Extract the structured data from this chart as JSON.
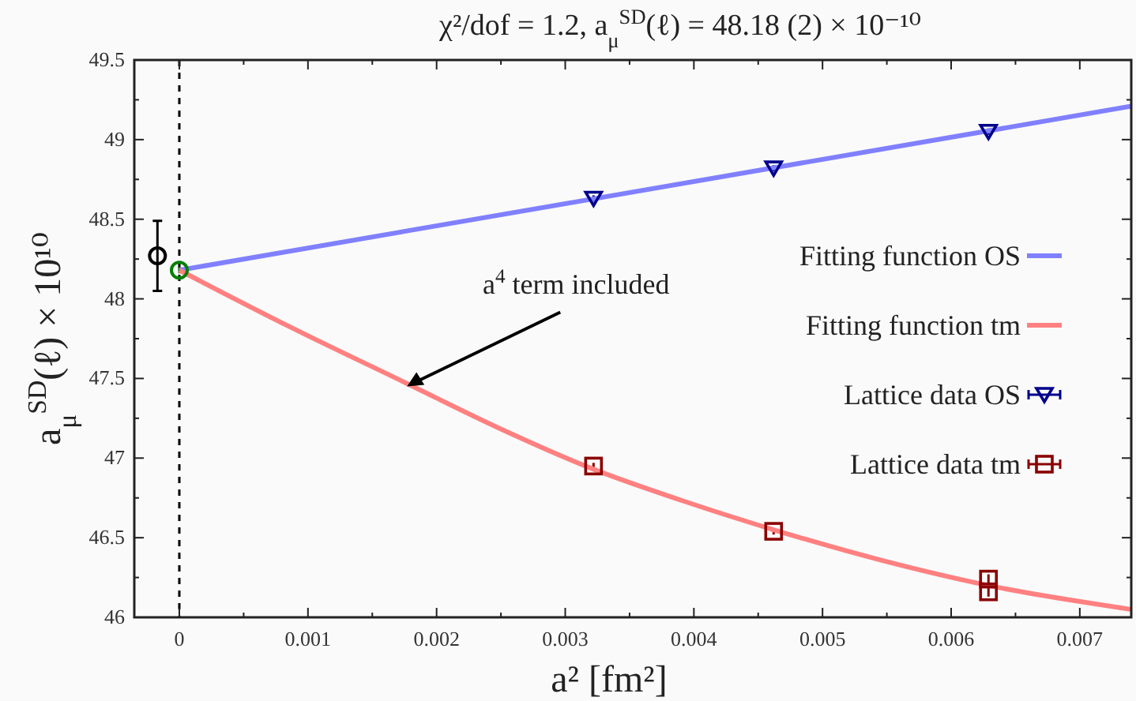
{
  "chart_data": {
    "type": "line",
    "title": "χ²/dof = 1.2,    a$_{μ}$$^{SD}$(ℓ) = 48.18 (2) × 10⁻¹⁰",
    "xlabel": "a² [fm²]",
    "ylabel": "a$_{μ}$$^{SD}$(ℓ) × 10¹⁰",
    "xlim": [
      -0.00035,
      0.0074
    ],
    "ylim": [
      46,
      49.5
    ],
    "xticks": [
      0,
      {
        "value": 0.0005,
        "label": null
      },
      0.001,
      {
        "value": 0.0015,
        "label": null
      },
      0.002,
      {
        "value": 0.0025,
        "label": null
      },
      0.003,
      {
        "value": 0.0035,
        "label": null
      },
      0.004,
      {
        "value": 0.0045,
        "label": null
      },
      0.005,
      {
        "value": 0.0055,
        "label": null
      },
      0.006,
      {
        "value": 0.0065,
        "label": null
      },
      0.007
    ],
    "yticks": [
      46,
      {
        "value": 46.25,
        "label": null
      },
      46.5,
      {
        "value": 46.75,
        "label": null
      },
      47,
      {
        "value": 47.25,
        "label": null
      },
      47.5,
      {
        "value": 47.75,
        "label": null
      },
      48,
      {
        "value": 48.25,
        "label": null
      },
      48.5,
      {
        "value": 48.75,
        "label": null
      },
      49,
      {
        "value": 49.25,
        "label": null
      },
      49.5
    ],
    "grid": false,
    "legend": "right",
    "ref_lines": [
      {
        "axis": "x",
        "value": 0,
        "color": "#000000",
        "line_style": "dashed"
      }
    ],
    "annotations": [
      {
        "text": "a$^{4}$ term included",
        "x": 0.00177,
        "y": 47.45
      }
    ],
    "series": [
      {
        "name": "Fitting function OS",
        "color": "#8080ff",
        "x": [
          0,
          0.0074
        ],
        "values": [
          48.18,
          49.21
        ]
      },
      {
        "name": "Fitting function tm",
        "color": "#ff8080",
        "x": [
          0,
          0.00087,
          0.00174,
          0.00248,
          0.00322,
          0.00392,
          0.00462,
          0.00545,
          0.00629,
          0.0074
        ],
        "values": [
          48.18,
          47.82,
          47.48,
          47.19,
          46.93,
          46.73,
          46.55,
          46.36,
          46.2,
          46.05
        ]
      },
      {
        "name": "Lattice data OS",
        "type": "scatter",
        "marker": "triangle",
        "color": "#00008b",
        "x": [
          0.00322,
          0.00462,
          0.00629
        ],
        "values": [
          48.63,
          48.82,
          49.05
        ],
        "errors": [
          0.02,
          0.02,
          0.02
        ],
        "xerrors": [
          null,
          null,
          null
        ]
      },
      {
        "name": "Lattice data tm",
        "type": "scatter",
        "marker": "square",
        "color": "#8b0000",
        "x": [
          0.00322,
          0.00462,
          0.00629,
          0.00629
        ],
        "values": [
          46.95,
          46.54,
          46.24,
          46.16
        ],
        "errors": [
          0.02,
          0.02,
          0.03,
          0.03
        ]
      },
      {
        "type": "scatter",
        "marker": "circle",
        "color": "#008000",
        "x": [
          0
        ],
        "values": [
          48.18
        ],
        "errors": [
          0.02
        ]
      },
      {
        "type": "scatter",
        "marker": "circle",
        "color": "#000000",
        "x": [
          -0.00017
        ],
        "values": [
          48.27
        ],
        "errors": [
          0.22
        ]
      }
    ]
  }
}
